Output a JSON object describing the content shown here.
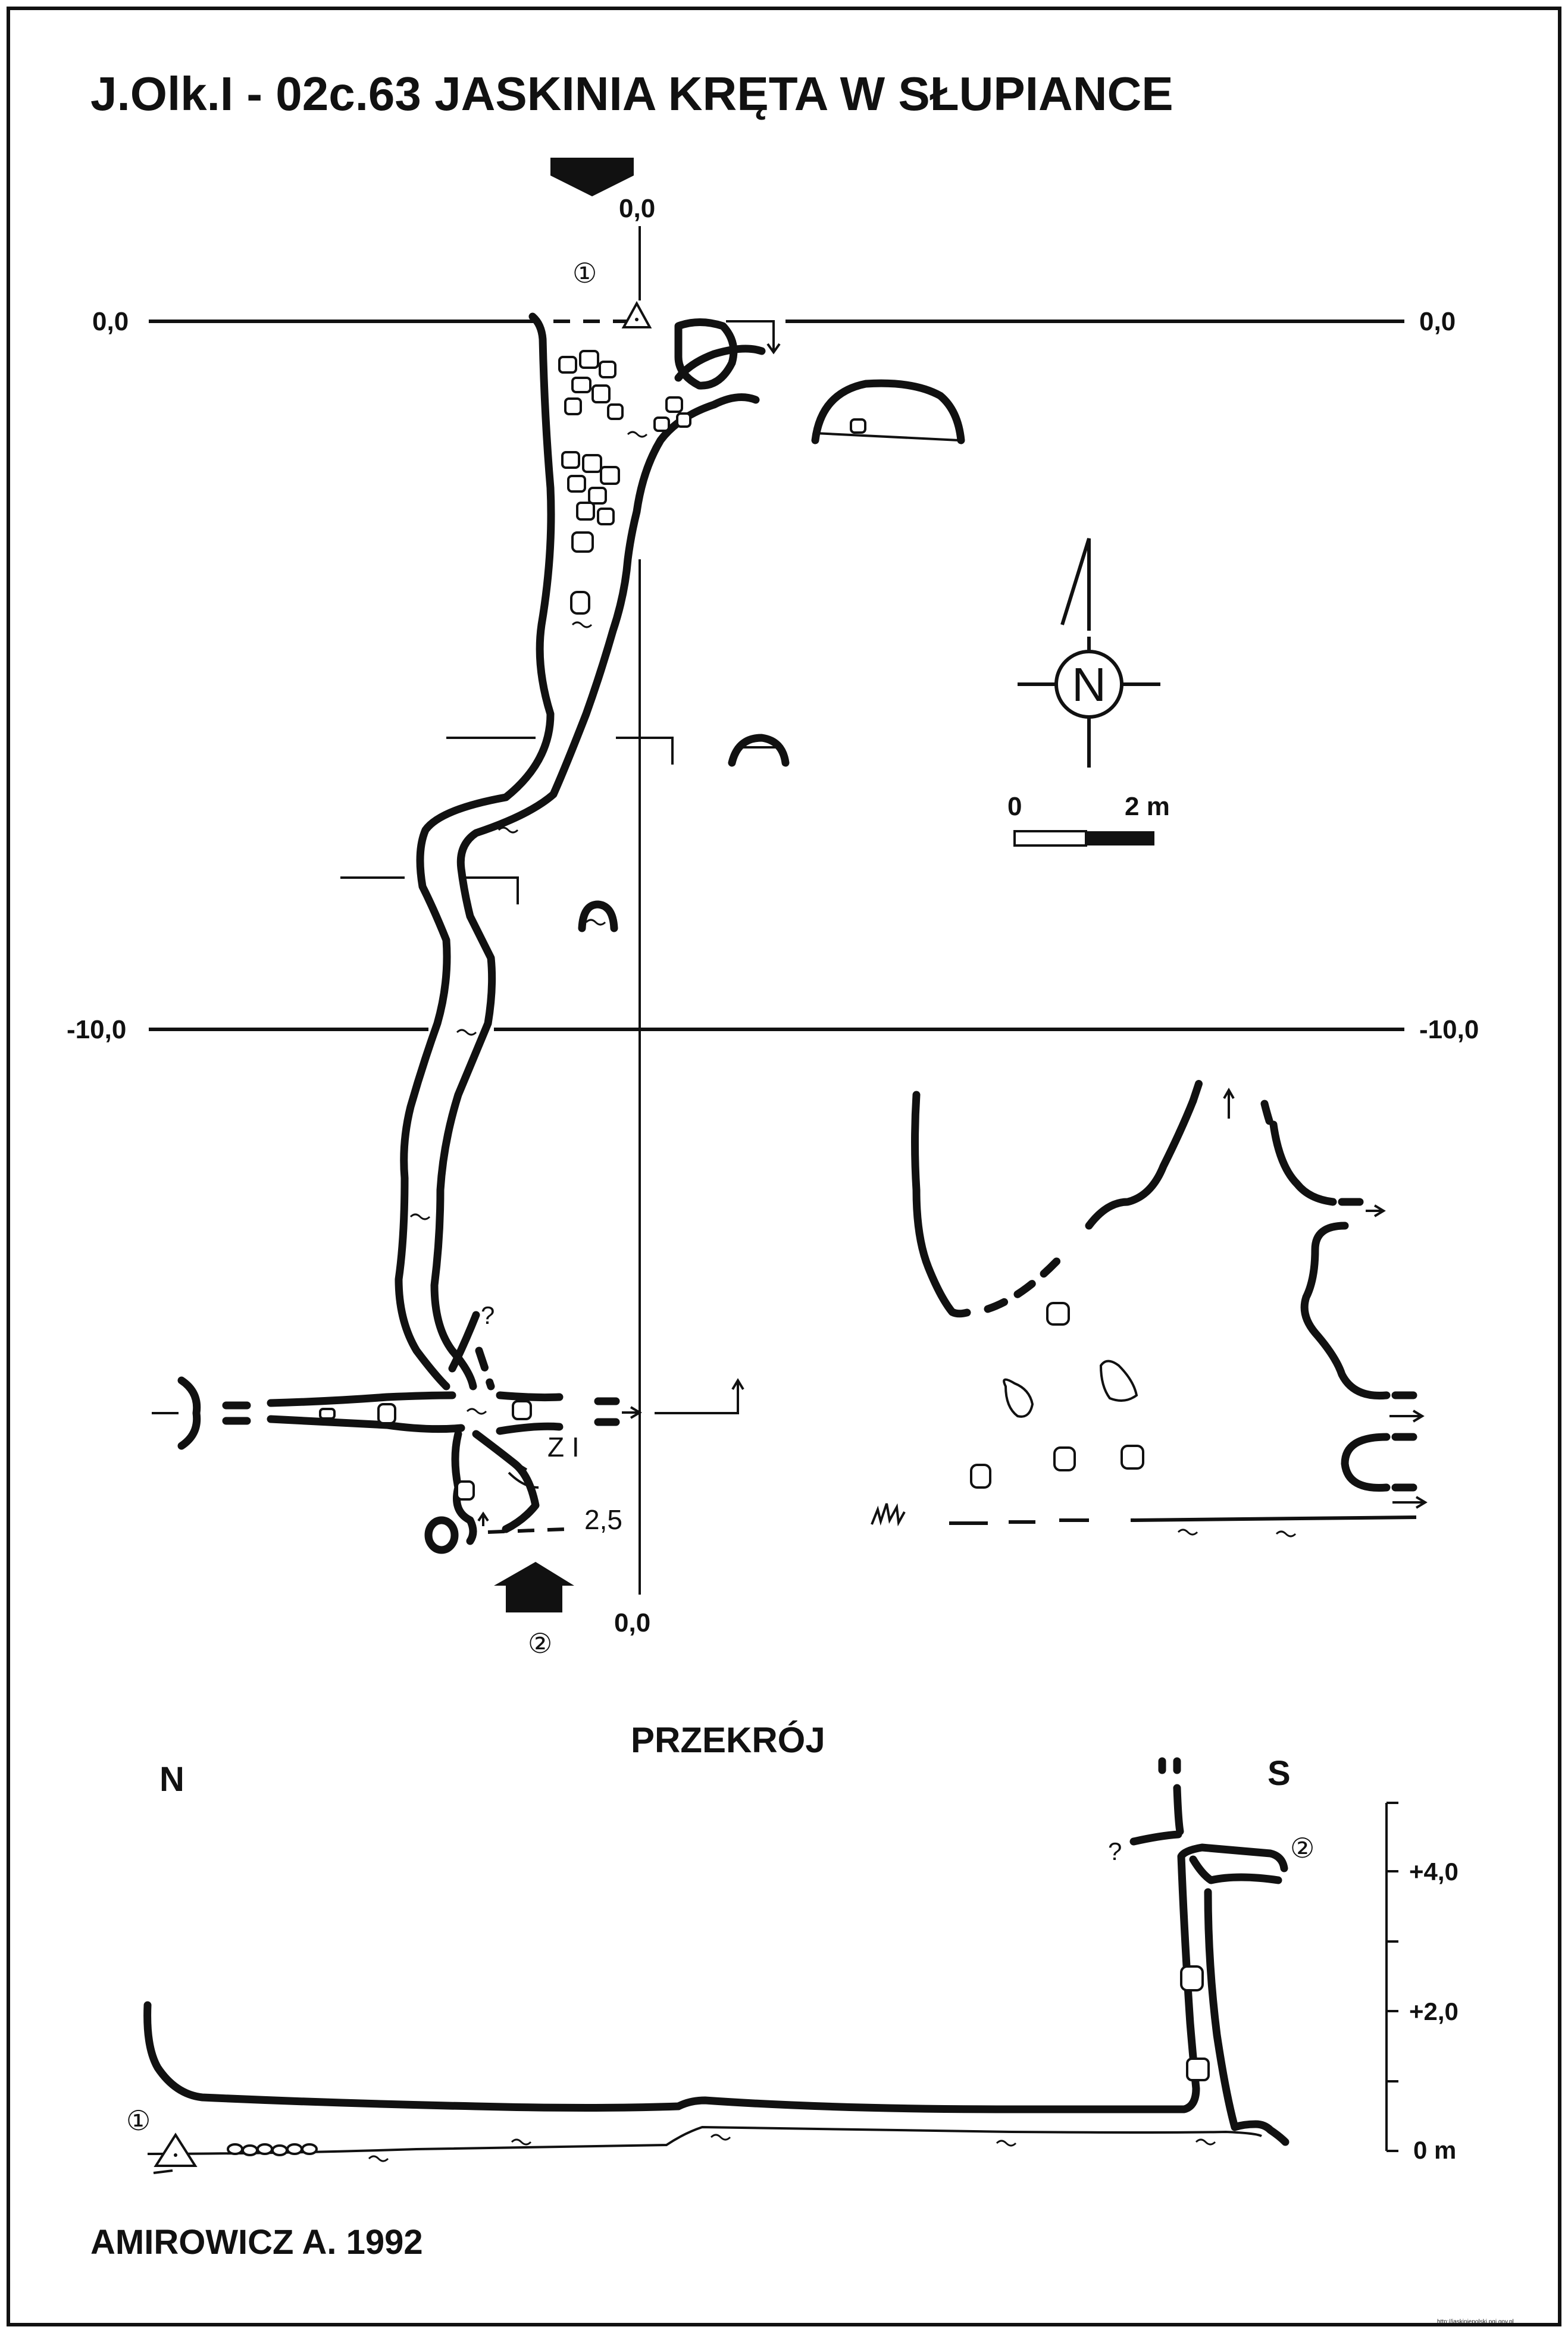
{
  "title": "J.Olk.I - 02c.63  JASKINIA KRĘTA W SŁUPIANCE",
  "plan": {
    "top_axis_label": "0,0",
    "bottom_axis_label": "0,0",
    "left_zero_label": "0,0",
    "right_zero_label": "0,0",
    "left_minus10_label": "-10,0",
    "right_minus10_label": "-10,0",
    "entrance_1_marker": "①",
    "entrance_2_marker": "②",
    "question_mark": "?",
    "survey_station": "Z I",
    "depth_label": "2,5"
  },
  "compass": {
    "letter": "N"
  },
  "scale_bar": {
    "start_label": "0",
    "end_label": "2 m"
  },
  "section": {
    "title": "PRZEKRÓJ",
    "north_label": "N",
    "south_label": "S",
    "entrance_1_marker": "①",
    "entrance_2_marker": "②",
    "question_mark": "?",
    "elevation_labels": [
      "+4,0",
      "+2,0",
      "0 m"
    ]
  },
  "author": "AMIROWICZ A. 1992",
  "watermark": "http://jaskiniepolski.pgi.gov.pl"
}
